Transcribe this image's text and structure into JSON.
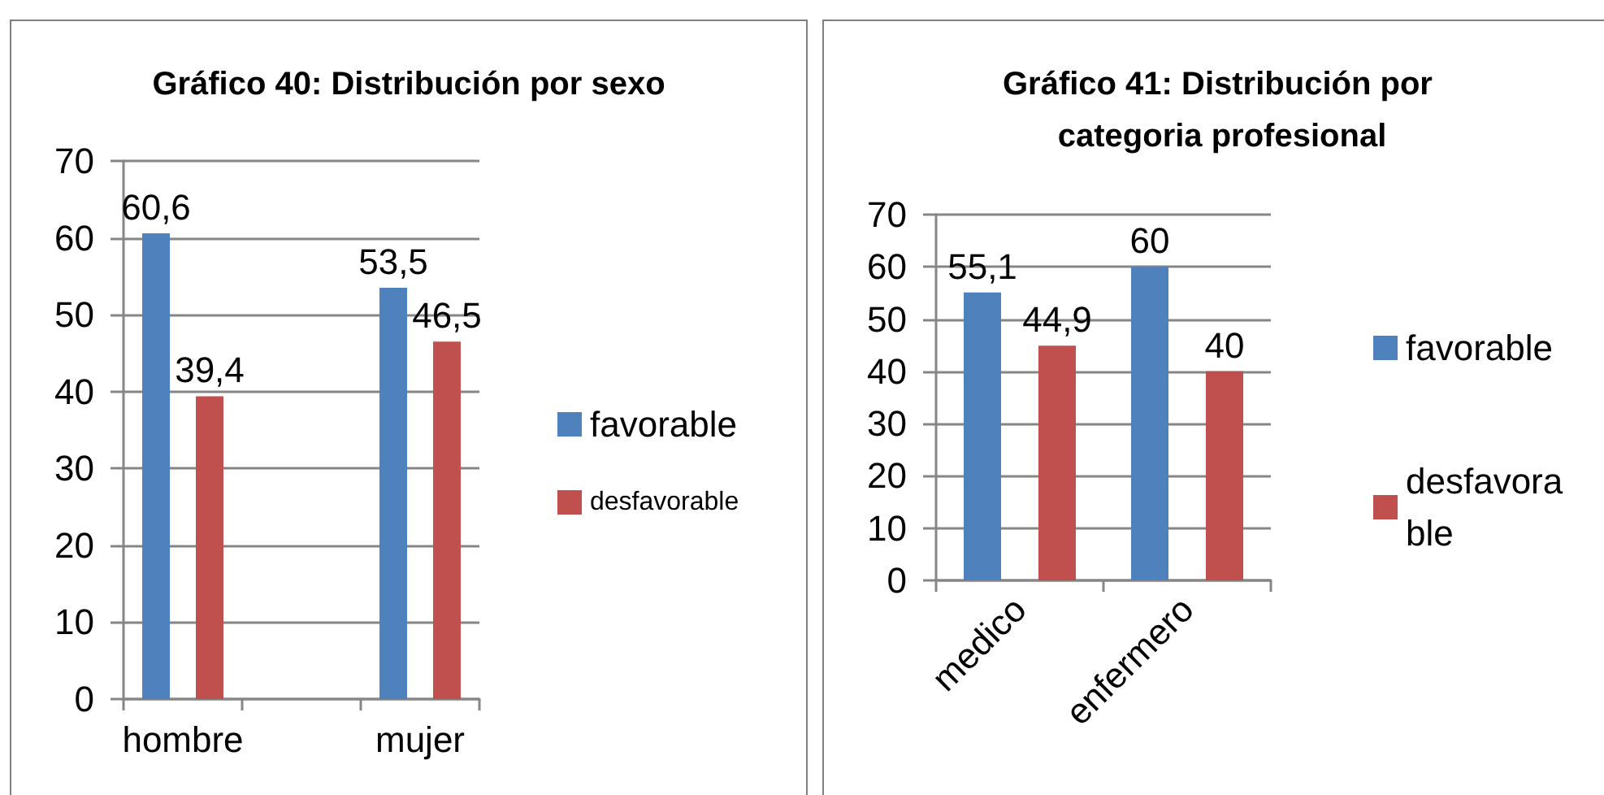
{
  "chart_data": [
    {
      "type": "bar",
      "title": "Gráfico 40: Distribución por sexo",
      "categories": [
        "hombre",
        null,
        "mujer"
      ],
      "series": [
        {
          "name": "favorable",
          "color": "#4f81bd",
          "values": [
            60.6,
            null,
            53.5
          ],
          "value_labels": [
            "60,6",
            null,
            "53,5"
          ]
        },
        {
          "name": "desfavorable",
          "color": "#c0504d",
          "values": [
            39.4,
            null,
            46.5
          ],
          "value_labels": [
            "39,4",
            null,
            "46,5"
          ]
        }
      ],
      "ylim": [
        0,
        70
      ],
      "yticks": [
        0,
        10,
        20,
        30,
        40,
        50,
        60,
        70
      ],
      "grid": "y",
      "legend": "right"
    },
    {
      "type": "bar",
      "title": "Gráfico 41: Distribución por categoria profesional",
      "categories": [
        "medico",
        "enfermero"
      ],
      "series": [
        {
          "name": "favorable",
          "color": "#4f81bd",
          "values": [
            55.1,
            60
          ],
          "value_labels": [
            "55,1",
            "60"
          ]
        },
        {
          "name": "desfavorable",
          "color": "#c0504d",
          "values": [
            44.9,
            40
          ],
          "value_labels": [
            "44,9",
            "40"
          ]
        }
      ],
      "ylim": [
        0,
        70
      ],
      "yticks": [
        0,
        10,
        20,
        30,
        40,
        50,
        60,
        70
      ],
      "grid": "y",
      "legend": "right"
    }
  ]
}
